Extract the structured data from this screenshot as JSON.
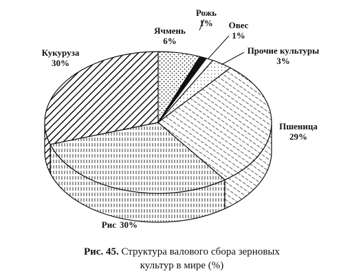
{
  "chart_data": {
    "type": "pie3d",
    "figure_label": "Рис. 45.",
    "title": "Структура валового сбора зерновых культур в мире (%)",
    "categories": [
      "Ячмень",
      "Рожь",
      "Овес",
      "Прочие культуры",
      "Пшеница",
      "Рис",
      "Кукуруза"
    ],
    "values": [
      6,
      1,
      1,
      3,
      29,
      30,
      30
    ],
    "value_labels": [
      "6%",
      "1%",
      "1%",
      "3%",
      "29%",
      "30%",
      "30%"
    ],
    "patterns": [
      "wave-dots",
      "solid",
      "blank",
      "dots",
      "hatch-light",
      "vertical-dashes",
      "hatch-heavy"
    ]
  }
}
